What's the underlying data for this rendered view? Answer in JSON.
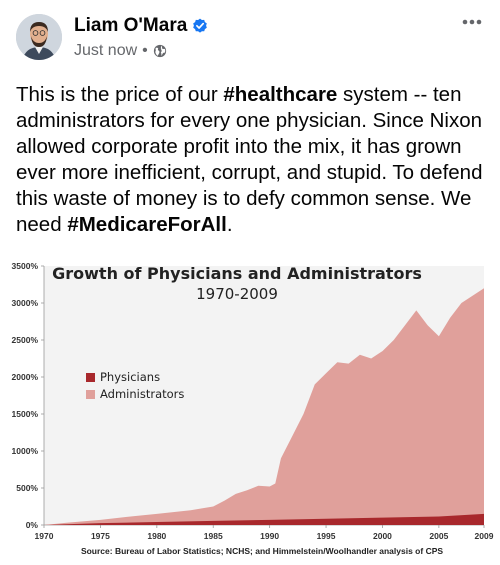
{
  "post": {
    "author": "Liam O'Mara",
    "time": "Just now",
    "separator": "•",
    "text_parts": [
      {
        "t": "This is the price of our ",
        "bold": false
      },
      {
        "t": "#healthcare",
        "bold": true
      },
      {
        "t": " system -- ten administrators for every one physician. Since Nixon allowed corporate profit into the mix, it has grown ever more inefficient, corrupt, and stupid. To defend this waste of money is to defy common sense. We need ",
        "bold": false
      },
      {
        "t": "#MedicareForAll",
        "bold": true
      },
      {
        "t": ".",
        "bold": false
      }
    ],
    "icons": {
      "verified": "verified-badge-icon",
      "privacy": "globe-icon",
      "more": "more-options-icon"
    },
    "colors": {
      "verified": "#1877f2",
      "meta": "#65676b"
    }
  },
  "chart_data": {
    "type": "area",
    "title": "Growth of Physicians and Administrators",
    "subtitle": "1970-2009",
    "source": "Source: Bureau of Labor Statistics; NCHS; and Himmelstein/Woolhandler analysis of CPS",
    "y_ticks": [
      "0%",
      "500%",
      "1000%",
      "1500%",
      "2000%",
      "2500%",
      "3000%",
      "3500%"
    ],
    "x_ticks": [
      "1970",
      "1975",
      "1980",
      "1985",
      "1990",
      "1995",
      "2000",
      "2005",
      "2009"
    ],
    "xlim": [
      1970,
      2009
    ],
    "ylim": [
      0,
      3500
    ],
    "legend_position": "left-middle",
    "series": [
      {
        "name": "Physicians",
        "color": "#a8282c",
        "x": [
          1970,
          1975,
          1980,
          1985,
          1990,
          1995,
          2000,
          2005,
          2009
        ],
        "values": [
          0,
          25,
          40,
          55,
          70,
          85,
          100,
          115,
          150
        ]
      },
      {
        "name": "Administrators",
        "color": "#e0a09b",
        "x": [
          1970,
          1972,
          1975,
          1978,
          1980,
          1983,
          1985,
          1986,
          1987,
          1988,
          1989,
          1990,
          1990.5,
          1991,
          1992,
          1993,
          1994,
          1995,
          1996,
          1997,
          1998,
          1999,
          2000,
          2001,
          2002,
          2003,
          2004,
          2005,
          2006,
          2007,
          2008,
          2009
        ],
        "values": [
          0,
          30,
          70,
          120,
          150,
          200,
          250,
          330,
          420,
          470,
          530,
          520,
          560,
          900,
          1200,
          1500,
          1900,
          2050,
          2200,
          2180,
          2300,
          2250,
          2350,
          2500,
          2700,
          2900,
          2700,
          2550,
          2800,
          3000,
          3100,
          3200
        ]
      }
    ]
  }
}
